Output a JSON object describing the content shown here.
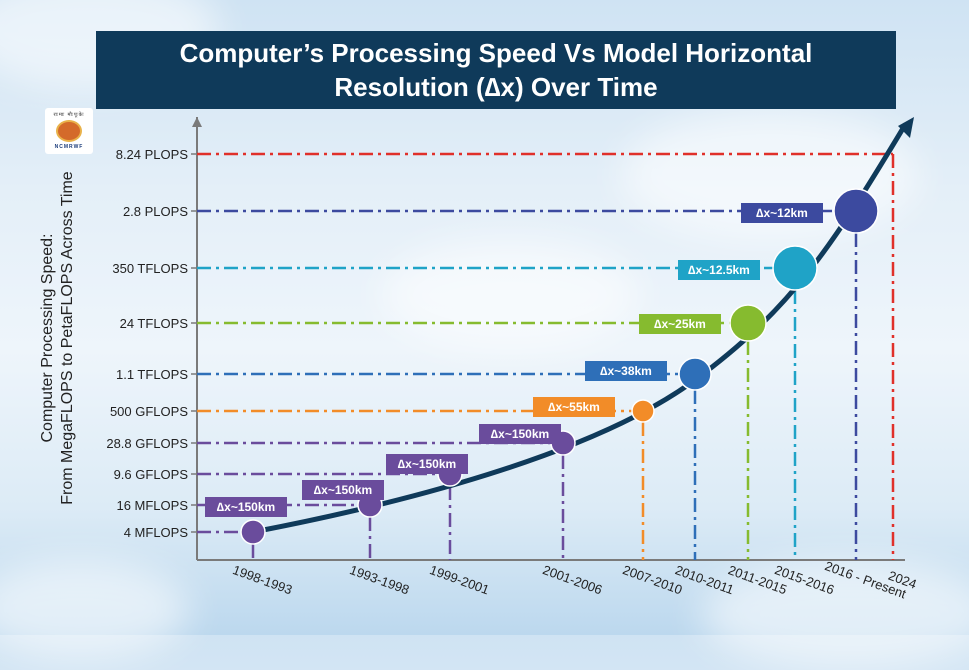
{
  "title": {
    "line1": "Computer’s Processing Speed Vs Model Horizontal",
    "line2": "Resolution (∆x) Over Time"
  },
  "logo": {
    "top_text": "राःमाः मौःपूःकेः",
    "bottom_text": "NCMRWF",
    "icon": "ncmrwf-logo-icon"
  },
  "chart_data": {
    "type": "line",
    "title": "Computer’s Processing Speed Vs Model Horizontal Resolution (∆x) Over Time",
    "ylabel_line1": "Computer Processing Speed:",
    "ylabel_line2": "From MegaFLOPS to PetaFLOPS Across Time",
    "xlabel": "",
    "y_ticks": [
      "4 MFLOPS",
      "16 MFLOPS",
      "9.6 GFLOPS",
      "28.8 GFLOPS",
      "500 GFLOPS",
      "1.1 TFLOPS",
      "24 TFLOPS",
      "350 TFLOPS",
      "2.8 PLOPS",
      "8.24 PLOPS"
    ],
    "x_ticks": [
      "1998-1993",
      "1993-1998",
      "1999-2001",
      "2001-2006",
      "2007-2010",
      "2010-2011",
      "2011-2015",
      "2015-2016",
      "2016 - Present",
      "2024"
    ],
    "points": [
      {
        "period": "1998-1993",
        "speed": "4 MFLOPS",
        "resolution": "∆x~150km",
        "color": "#6a4c9c"
      },
      {
        "period": "1993-1998",
        "speed": "16 MFLOPS",
        "resolution": "∆x~150km",
        "color": "#6a4c9c"
      },
      {
        "period": "1999-2001",
        "speed": "9.6 GFLOPS",
        "resolution": "∆x~150km",
        "color": "#6a4c9c"
      },
      {
        "period": "2001-2006",
        "speed": "28.8 GFLOPS",
        "resolution": "∆x~150km",
        "color": "#6a4c9c"
      },
      {
        "period": "2007-2010",
        "speed": "500 GFLOPS",
        "resolution": "∆x~55km",
        "color": "#f28c28"
      },
      {
        "period": "2010-2011",
        "speed": "1.1 TFLOPS",
        "resolution": "∆x~38km",
        "color": "#2e6fb8"
      },
      {
        "period": "2011-2015",
        "speed": "24 TFLOPS",
        "resolution": "∆x~25km",
        "color": "#86bb2f"
      },
      {
        "period": "2015-2016",
        "speed": "350 TFLOPS",
        "resolution": "∆x~12.5km",
        "color": "#1fa3c7"
      },
      {
        "period": "2016 - Present",
        "speed": "2.8 PLOPS",
        "resolution": "∆x~12km",
        "color": "#3c4a9f"
      },
      {
        "period": "2024",
        "speed": "8.24 PLOPS",
        "resolution": "",
        "color": "#e0302a"
      }
    ]
  }
}
